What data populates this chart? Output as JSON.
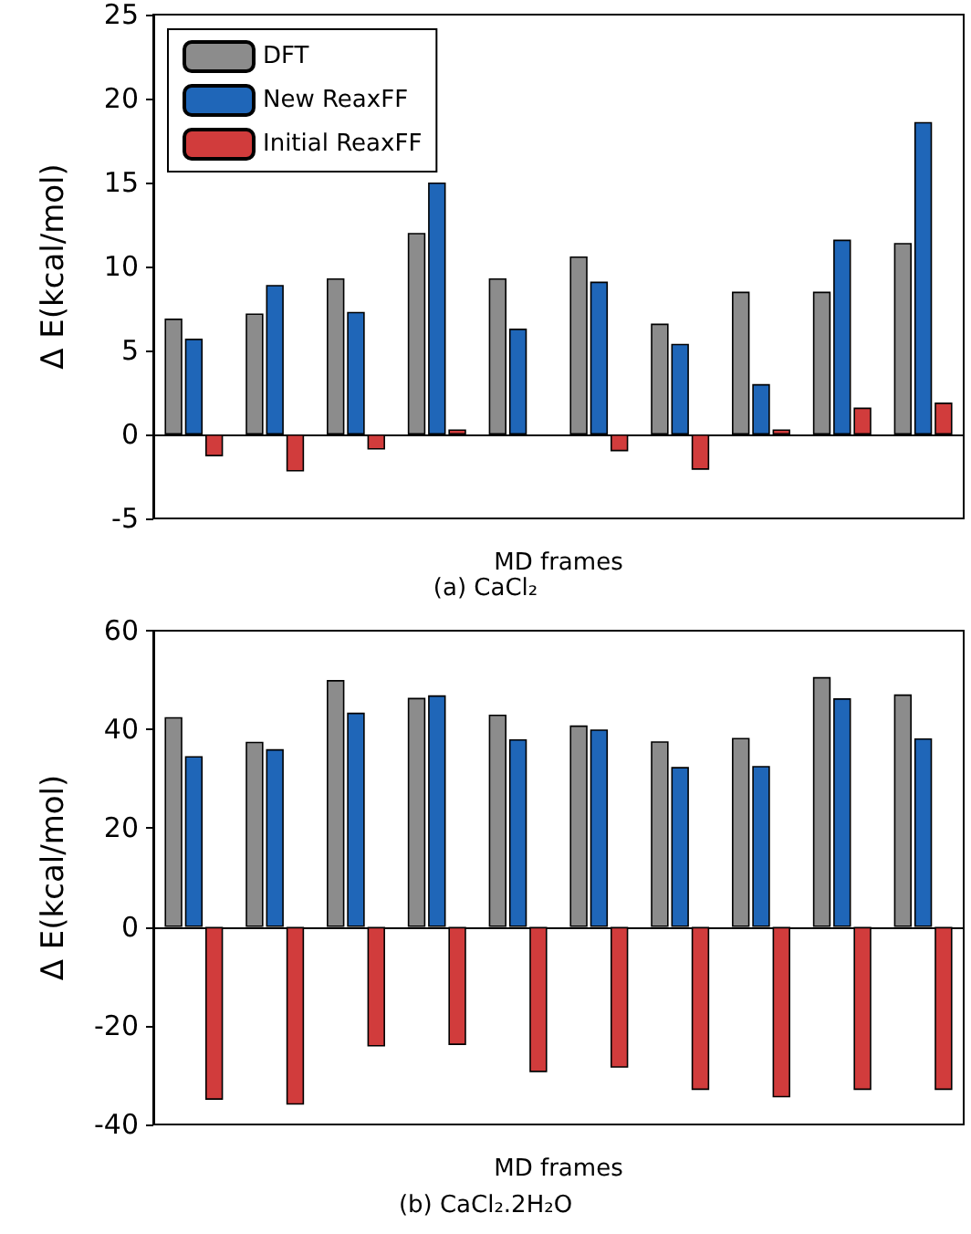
{
  "chart_data": [
    {
      "type": "bar",
      "title": "(a) CaCl₂",
      "xlabel": "MD frames",
      "ylabel": "Δ E(kcal/mol)",
      "categories": [
        null,
        null,
        null,
        null,
        null,
        null,
        null,
        null,
        null,
        null
      ],
      "series": [
        {
          "name": "DFT",
          "color": "#8c8c8c",
          "values": [
            6.9,
            7.2,
            9.3,
            12.0,
            9.3,
            10.6,
            6.6,
            8.5,
            8.5,
            11.4
          ]
        },
        {
          "name": "New ReaxFF",
          "color": "#1f66b8",
          "values": [
            5.7,
            8.9,
            7.3,
            15,
            6.3,
            9.1,
            5.4,
            3.0,
            11.6,
            18.6
          ]
        },
        {
          "name": "Initial ReaxFF",
          "color": "#d13c3c",
          "values": [
            -1.3,
            -2.2,
            -0.9,
            0.3,
            -0.1,
            -1.0,
            -2.1,
            0.3,
            1.6,
            1.9
          ]
        }
      ],
      "ylim": [
        -5,
        25
      ],
      "yticks": [
        -5,
        0,
        5,
        10,
        15,
        20,
        25
      ],
      "legend": "top left",
      "tick_labels": "y"
    },
    {
      "type": "bar",
      "title": "(b) CaCl₂.2H₂O",
      "xlabel": "MD frames",
      "ylabel": "Δ E(kcal/mol)",
      "categories": [
        null,
        null,
        null,
        null,
        null,
        null,
        null,
        null,
        null,
        null
      ],
      "series": [
        {
          "color": "#8c8c8c",
          "values": [
            42.5,
            37.5,
            50.0,
            46.4,
            43.0,
            40.8,
            37.6,
            38.3,
            50.6,
            47.1
          ]
        },
        {
          "color": "#1f66b8",
          "values": [
            34.6,
            36.0,
            43.4,
            46.9,
            38.0,
            40.0,
            32.4,
            32.6,
            46.3,
            38.2
          ]
        },
        {
          "color": "#d13c3c",
          "values": [
            -35.0,
            -36.0,
            -24.2,
            -23.9,
            -29.4,
            -28.5,
            -33.0,
            -34.5,
            -33.0,
            -33.0
          ]
        }
      ],
      "ylim": [
        -40,
        60
      ],
      "yticks": [
        -40,
        -20,
        0,
        20,
        40,
        60
      ],
      "tick_labels": "y"
    }
  ]
}
